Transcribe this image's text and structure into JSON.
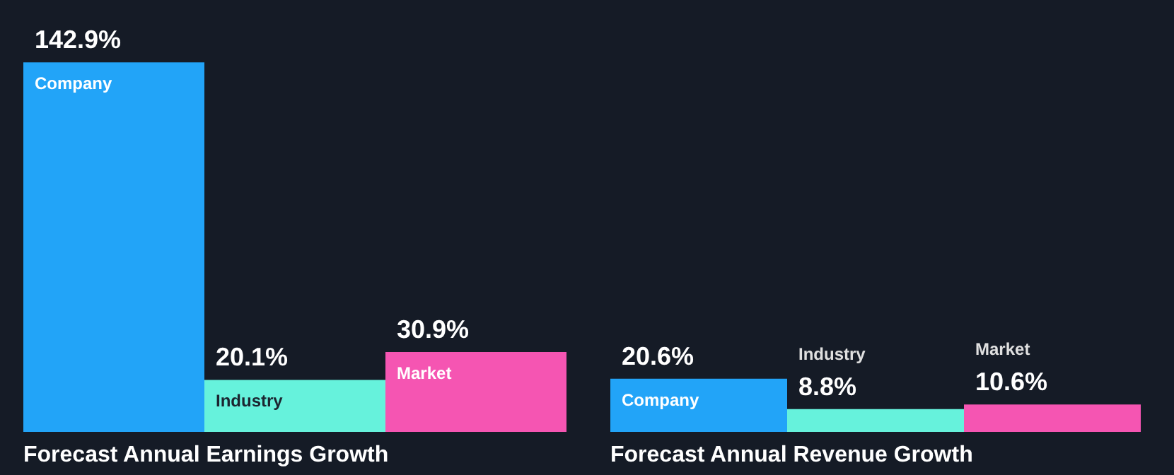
{
  "chart_data": [
    {
      "type": "bar",
      "title": "Forecast Annual Earnings Growth",
      "categories": [
        "Company",
        "Industry",
        "Market"
      ],
      "values": [
        142.9,
        20.1,
        30.9
      ],
      "colors": [
        "#22a4f8",
        "#66f2dc",
        "#f555b2"
      ],
      "data_labels": true,
      "value_labels": [
        "142.9%",
        "20.1%",
        "30.9%"
      ]
    },
    {
      "type": "bar",
      "title": "Forecast Annual Revenue Growth",
      "categories": [
        "Company",
        "Industry",
        "Market"
      ],
      "values": [
        20.6,
        8.8,
        10.6
      ],
      "colors": [
        "#22a4f8",
        "#66f2dc",
        "#f555b2"
      ],
      "data_labels": true,
      "value_labels": [
        "20.6%",
        "8.8%",
        "10.6%"
      ]
    }
  ]
}
